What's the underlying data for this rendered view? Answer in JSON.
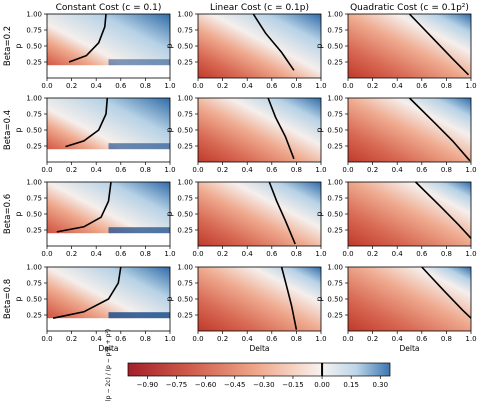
{
  "chart_data": {
    "type": "heatmap",
    "column_titles": [
      "Constant Cost ($c = 0.1$)",
      "Linear Cost ($c = 0.1p$)",
      "Quadratic Cost ($c = 0.1p^2$)"
    ],
    "column_titles_display": [
      "Constant Cost (c = 0.1)",
      "Linear Cost (c = 0.1p)",
      "Quadratic Cost (c = 0.1p²)"
    ],
    "row_labels": [
      "Beta=0.2",
      "Beta=0.4",
      "Beta=0.6",
      "Beta=0.8"
    ],
    "xlabel": "Delta",
    "ylabel": "p",
    "xlim": [
      0.0,
      1.0
    ],
    "ylim": [
      0.0,
      1.0
    ],
    "x_ticks": [
      "0.0",
      "0.2",
      "0.4",
      "0.6",
      "0.8",
      "1.0"
    ],
    "y_ticks": [
      "0.25",
      "0.50",
      "0.75",
      "1.00"
    ],
    "colorbar": {
      "label": "δ − (p − 2c) / (p − p²β + p²)",
      "range": [
        -1.0,
        0.35
      ],
      "ticks": [
        "−0.90",
        "−0.75",
        "−0.60",
        "−0.45",
        "−0.30",
        "−0.15",
        "0.00",
        "0.15",
        "0.30"
      ],
      "colormap": "RdBu",
      "zero_line": true
    },
    "zero_contours": [
      [
        [
          [
            0.18,
            0.25
          ],
          [
            0.32,
            0.35
          ],
          [
            0.42,
            0.55
          ],
          [
            0.47,
            0.8
          ],
          [
            0.48,
            1.0
          ]
        ],
        [
          [
            0.45,
            1.0
          ],
          [
            0.55,
            0.7
          ],
          [
            0.68,
            0.4
          ],
          [
            0.78,
            0.12
          ]
        ],
        [
          [
            0.5,
            1.0
          ],
          [
            0.7,
            0.6
          ],
          [
            0.85,
            0.3
          ],
          [
            0.98,
            0.05
          ]
        ]
      ],
      [
        [
          [
            0.15,
            0.24
          ],
          [
            0.3,
            0.33
          ],
          [
            0.42,
            0.5
          ],
          [
            0.48,
            0.75
          ],
          [
            0.49,
            1.0
          ]
        ],
        [
          [
            0.57,
            1.0
          ],
          [
            0.63,
            0.7
          ],
          [
            0.71,
            0.4
          ],
          [
            0.78,
            0.05
          ]
        ],
        [
          [
            0.5,
            1.0
          ],
          [
            0.7,
            0.62
          ],
          [
            0.85,
            0.33
          ],
          [
            0.99,
            0.02
          ]
        ]
      ],
      [
        [
          [
            0.08,
            0.22
          ],
          [
            0.3,
            0.3
          ],
          [
            0.44,
            0.45
          ],
          [
            0.5,
            0.7
          ],
          [
            0.52,
            1.0
          ]
        ],
        [
          [
            0.58,
            1.0
          ],
          [
            0.64,
            0.7
          ],
          [
            0.71,
            0.4
          ],
          [
            0.79,
            0.03
          ]
        ],
        [
          [
            0.55,
            1.0
          ],
          [
            0.75,
            0.62
          ],
          [
            0.9,
            0.33
          ],
          [
            1.0,
            0.12
          ]
        ]
      ],
      [
        [
          [
            0.05,
            0.2
          ],
          [
            0.3,
            0.3
          ],
          [
            0.5,
            0.5
          ],
          [
            0.58,
            0.75
          ],
          [
            0.6,
            1.0
          ]
        ],
        [
          [
            0.68,
            1.0
          ],
          [
            0.72,
            0.7
          ],
          [
            0.76,
            0.4
          ],
          [
            0.8,
            0.02
          ]
        ],
        [
          [
            0.6,
            1.0
          ],
          [
            0.78,
            0.63
          ],
          [
            0.93,
            0.33
          ],
          [
            1.0,
            0.2
          ]
        ]
      ]
    ],
    "blank_region_constant_cost_p_below": 0.2
  }
}
